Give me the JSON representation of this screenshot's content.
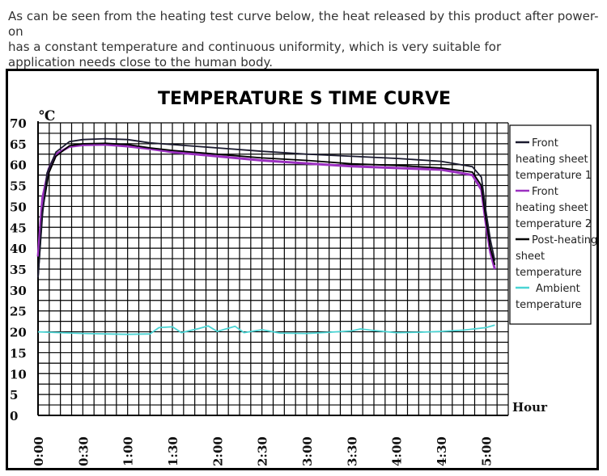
{
  "intro": {
    "line1": "As can be seen from the heating test curve below, the heat released by this product after power-on",
    "line2": "has a constant temperature and continuous uniformity, which is very suitable for",
    "line3": "application needs close to the human body."
  },
  "chart_data": {
    "type": "line",
    "title": "TEMPERATURE S TIME CURVE",
    "ylabel": "℃",
    "xlabel": "Hour",
    "ylim": [
      0,
      70
    ],
    "xlim": [
      0,
      5.25
    ],
    "y_ticks": [
      "70",
      "65",
      "60",
      "55",
      "50",
      "45",
      "40",
      "35",
      "30",
      "25",
      "20",
      "15",
      "10",
      "5",
      "0"
    ],
    "x_ticks": [
      {
        "label": "0:00",
        "value": 0
      },
      {
        "label": "0:30",
        "value": 0.5
      },
      {
        "label": "1:00",
        "value": 1
      },
      {
        "label": "1:30",
        "value": 1.5
      },
      {
        "label": "2:00",
        "value": 2
      },
      {
        "label": "2:30",
        "value": 2.5
      },
      {
        "label": "3:00",
        "value": 3
      },
      {
        "label": "3:30",
        "value": 3.5
      },
      {
        "label": "4:00",
        "value": 4
      },
      {
        "label": "4:30",
        "value": 4.5
      },
      {
        "label": "5:00",
        "value": 5
      }
    ],
    "grid": true,
    "legend_position": "right",
    "series": [
      {
        "name": "Front heating sheet temperature 1",
        "legend_lines": [
          "Front",
          "heating sheet",
          "temperature 1"
        ],
        "color": "#1a1a2e",
        "points": [
          [
            0,
            33
          ],
          [
            0.05,
            48
          ],
          [
            0.1,
            58
          ],
          [
            0.2,
            63
          ],
          [
            0.35,
            65.5
          ],
          [
            0.5,
            66
          ],
          [
            0.75,
            66.2
          ],
          [
            1,
            66
          ],
          [
            1.25,
            65.2
          ],
          [
            1.5,
            64.8
          ],
          [
            2,
            64
          ],
          [
            2.5,
            63.2
          ],
          [
            3,
            62.5
          ],
          [
            3.5,
            62
          ],
          [
            4,
            61.5
          ],
          [
            4.5,
            60.8
          ],
          [
            4.85,
            59.5
          ],
          [
            4.95,
            57
          ],
          [
            5.0,
            49
          ],
          [
            5.05,
            42
          ],
          [
            5.1,
            37
          ]
        ]
      },
      {
        "name": "Front heating sheet temperature 2",
        "legend_lines": [
          "Front",
          "heating sheet",
          "temperature 2"
        ],
        "color": "#9b30c0",
        "points": [
          [
            0,
            38
          ],
          [
            0.05,
            52
          ],
          [
            0.12,
            59
          ],
          [
            0.2,
            62.5
          ],
          [
            0.35,
            64.3
          ],
          [
            0.5,
            64.7
          ],
          [
            0.75,
            64.8
          ],
          [
            1,
            64.4
          ],
          [
            1.25,
            63.8
          ],
          [
            1.5,
            63
          ],
          [
            2,
            62
          ],
          [
            2.5,
            61
          ],
          [
            3,
            60.3
          ],
          [
            3.5,
            59.6
          ],
          [
            4,
            59.2
          ],
          [
            4.5,
            58.8
          ],
          [
            4.85,
            57.5
          ],
          [
            4.95,
            54
          ],
          [
            5.0,
            46
          ],
          [
            5.05,
            39
          ],
          [
            5.1,
            35
          ]
        ]
      },
      {
        "name": "Post-heating sheet temperature",
        "legend_lines": [
          "Post-heating",
          "sheet",
          "temperature"
        ],
        "color": "#000000",
        "points": [
          [
            0,
            33
          ],
          [
            0.05,
            49
          ],
          [
            0.12,
            58
          ],
          [
            0.2,
            62
          ],
          [
            0.35,
            64.5
          ],
          [
            0.5,
            65
          ],
          [
            0.75,
            65.1
          ],
          [
            1,
            64.8
          ],
          [
            1.25,
            64
          ],
          [
            1.5,
            63.4
          ],
          [
            2,
            62.5
          ],
          [
            2.5,
            61.6
          ],
          [
            3,
            61
          ],
          [
            3.5,
            60.2
          ],
          [
            4,
            59.8
          ],
          [
            4.5,
            59.2
          ],
          [
            4.85,
            58.2
          ],
          [
            4.95,
            55
          ],
          [
            5.0,
            47
          ],
          [
            5.05,
            40
          ],
          [
            5.1,
            36
          ]
        ]
      },
      {
        "name": "Ambient temperature",
        "legend_lines": [
          "Ambient",
          "temperature"
        ],
        "color": "#4ad4d4",
        "points": [
          [
            0,
            20
          ],
          [
            0.25,
            19.8
          ],
          [
            0.5,
            19.6
          ],
          [
            0.75,
            19.5
          ],
          [
            1,
            19.4
          ],
          [
            1.25,
            19.5
          ],
          [
            1.35,
            21
          ],
          [
            1.5,
            21.2
          ],
          [
            1.6,
            19.8
          ],
          [
            1.8,
            20.8
          ],
          [
            1.9,
            21.4
          ],
          [
            2.0,
            20.1
          ],
          [
            2.2,
            21.3
          ],
          [
            2.3,
            19.8
          ],
          [
            2.5,
            20.5
          ],
          [
            2.7,
            19.7
          ],
          [
            3,
            19.6
          ],
          [
            3.25,
            19.9
          ],
          [
            3.5,
            20.2
          ],
          [
            3.6,
            20.7
          ],
          [
            3.75,
            20.3
          ],
          [
            4,
            19.8
          ],
          [
            4.25,
            19.9
          ],
          [
            4.5,
            20.1
          ],
          [
            4.75,
            20.4
          ],
          [
            5,
            21
          ],
          [
            5.1,
            21.6
          ]
        ]
      }
    ]
  }
}
